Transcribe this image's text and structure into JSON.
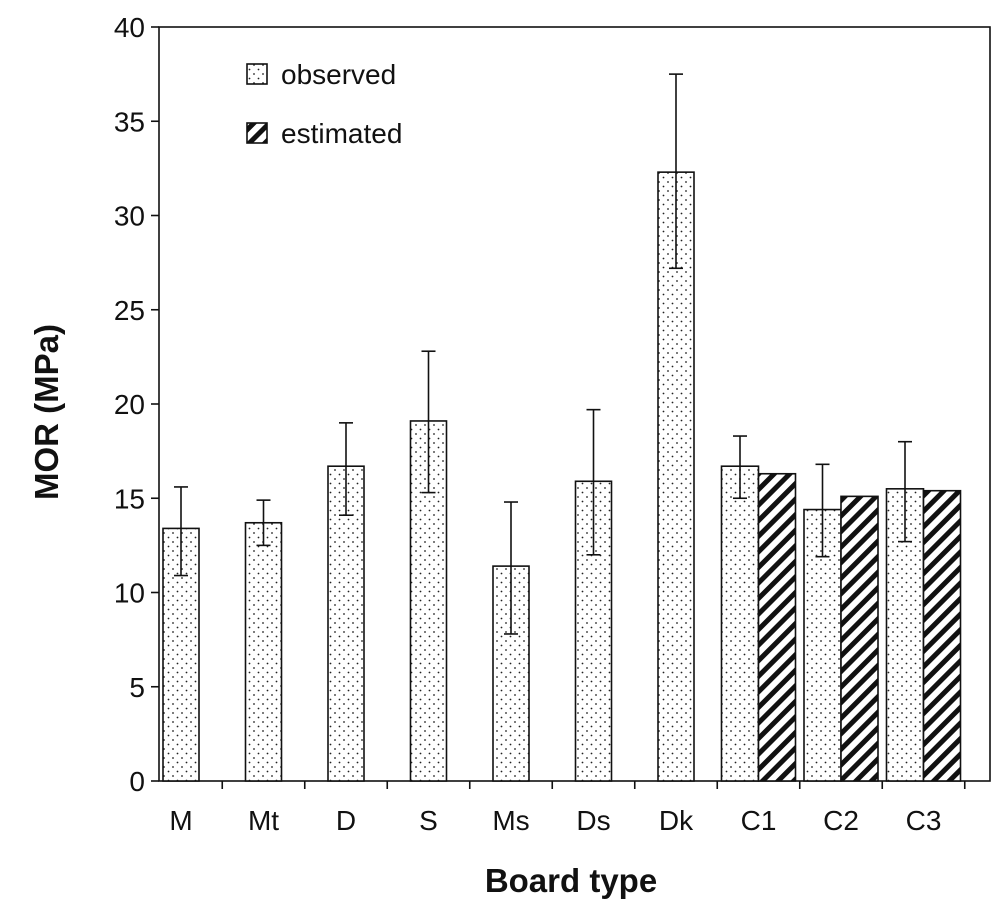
{
  "chart_data": {
    "type": "bar",
    "title": "",
    "xlabel": "Board type",
    "ylabel": "MOR (MPa)",
    "ylim": [
      0,
      40
    ],
    "yticks": [
      "0",
      "5",
      "10",
      "15",
      "20",
      "25",
      "30",
      "35",
      "40"
    ],
    "categories": [
      "M",
      "Mt",
      "D",
      "S",
      "Ms",
      "Ds",
      "Dk",
      "C1",
      "C2",
      "C3"
    ],
    "series": [
      {
        "name": "observed",
        "pattern": "dots",
        "values": [
          13.4,
          13.7,
          16.7,
          19.1,
          11.4,
          15.9,
          32.3,
          16.7,
          14.4,
          15.5
        ],
        "error_low": [
          10.9,
          12.5,
          14.1,
          15.3,
          7.8,
          12.0,
          27.2,
          15.0,
          11.9,
          12.7
        ],
        "error_high": [
          15.6,
          14.9,
          19.0,
          22.8,
          14.8,
          19.7,
          37.5,
          18.3,
          16.8,
          18.0
        ]
      },
      {
        "name": "estimated",
        "pattern": "hatch",
        "values": [
          null,
          null,
          null,
          null,
          null,
          null,
          null,
          16.3,
          15.1,
          15.4
        ]
      }
    ],
    "legend": {
      "position": "top-left"
    },
    "grid": false
  }
}
